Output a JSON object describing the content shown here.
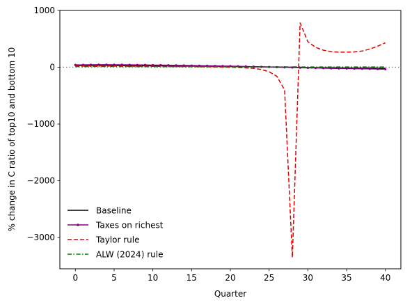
{
  "chart_data": {
    "type": "line",
    "title": "",
    "xlabel": "Quarter",
    "ylabel": "% change in C ratio of top10 and bottom 10",
    "xlim": [
      -2,
      42
    ],
    "ylim": [
      -3550,
      1000
    ],
    "xticks": [
      0,
      5,
      10,
      15,
      20,
      25,
      30,
      35,
      40
    ],
    "yticks": [
      1000,
      0,
      -1000,
      -2000,
      -3000
    ],
    "ytick_labels": [
      "1000",
      "0",
      "−1000",
      "−2000",
      "−3000"
    ],
    "grid": false,
    "zero_line": {
      "y": 0,
      "style": "dotted",
      "color": "#808080"
    },
    "legend": {
      "position": "lower-left",
      "frame": false
    },
    "x": [
      0,
      1,
      2,
      3,
      4,
      5,
      6,
      7,
      8,
      9,
      10,
      11,
      12,
      13,
      14,
      15,
      16,
      17,
      18,
      19,
      20,
      21,
      22,
      23,
      24,
      25,
      26,
      27,
      28,
      29,
      30,
      31,
      32,
      33,
      34,
      35,
      36,
      37,
      38,
      39,
      40
    ],
    "series": [
      {
        "name": "Baseline",
        "color": "#000000",
        "style": "solid",
        "marker": "none",
        "values": [
          30,
          31,
          32,
          32,
          32,
          31,
          30,
          29,
          28,
          27,
          26,
          25,
          24,
          23,
          22,
          21,
          20,
          19,
          18,
          16,
          14,
          12,
          10,
          8,
          6,
          4,
          2,
          0,
          -2,
          -4,
          -6,
          -8,
          -10,
          -12,
          -13,
          -14,
          -15,
          -16,
          -17,
          -18,
          -20
        ]
      },
      {
        "name": "Taxes on richest",
        "color": "#800080",
        "style": "solid",
        "marker": "dot",
        "values": [
          40,
          42,
          44,
          45,
          45,
          44,
          43,
          42,
          41,
          40,
          38,
          37,
          35,
          33,
          31,
          29,
          27,
          25,
          23,
          21,
          19,
          16,
          13,
          10,
          7,
          4,
          1,
          -2,
          -5,
          -8,
          -11,
          -14,
          -17,
          -19,
          -21,
          -23,
          -25,
          -27,
          -29,
          -31,
          -35
        ]
      },
      {
        "name": "Taylor rule",
        "color": "#e00000",
        "style": "dashed",
        "marker": "none",
        "values": [
          20,
          21,
          22,
          22,
          22,
          21,
          20,
          19,
          18,
          17,
          16,
          15,
          14,
          13,
          12,
          10,
          8,
          6,
          4,
          2,
          0,
          -5,
          -12,
          -20,
          -40,
          -80,
          -160,
          -400,
          -3350,
          780,
          450,
          350,
          300,
          275,
          265,
          265,
          270,
          285,
          320,
          370,
          430
        ]
      },
      {
        "name": "ALW (2024) rule",
        "color": "#008000",
        "style": "dashdot",
        "marker": "none",
        "values": [
          10,
          11,
          12,
          12,
          12,
          12,
          11,
          11,
          10,
          10,
          10,
          9,
          9,
          9,
          9,
          8,
          8,
          8,
          8,
          7,
          7,
          7,
          7,
          7,
          6,
          6,
          6,
          6,
          6,
          6,
          5,
          5,
          5,
          5,
          5,
          5,
          5,
          5,
          5,
          5,
          5
        ]
      }
    ]
  }
}
